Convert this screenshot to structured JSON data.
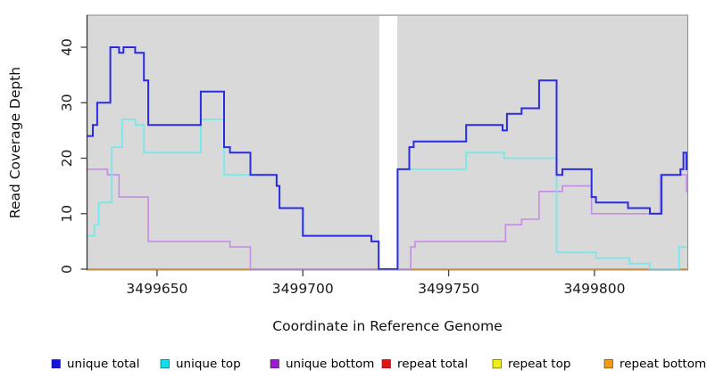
{
  "chart_data": {
    "type": "line",
    "subtype": "step",
    "title": "",
    "xlabel": "Coordinate in Reference Genome",
    "ylabel": "Read Coverage Depth",
    "xlim": [
      3499626,
      3499832
    ],
    "ylim": [
      0,
      44
    ],
    "x_ticks": [
      "3499650",
      "3499700",
      "3499750",
      "3499800"
    ],
    "x_tick_values": [
      3499650,
      3499700,
      3499750,
      3499800
    ],
    "y_ticks": [
      "0",
      "10",
      "20",
      "30",
      "40"
    ],
    "y_tick_values": [
      0,
      10,
      20,
      30,
      40
    ],
    "grid": false,
    "plot_bg": "#d9d9d9",
    "frame_color": "#8c8c8c",
    "axis_color": "#333333",
    "gap_region": {
      "x_start": 3499726.2,
      "x_end": 3499732.4,
      "color": "#ffffff"
    },
    "legend_position": "bottom",
    "series": [
      {
        "name": "unique total",
        "color": "#2b2be4",
        "legend_color": "#1414e0",
        "width": 2.0,
        "steps": [
          [
            3499626,
            24
          ],
          [
            3499628,
            26
          ],
          [
            3499629.5,
            30
          ],
          [
            3499634,
            40
          ],
          [
            3499637,
            39
          ],
          [
            3499638.5,
            40
          ],
          [
            3499642.5,
            39
          ],
          [
            3499645.5,
            34
          ],
          [
            3499647,
            26
          ],
          [
            3499665,
            32
          ],
          [
            3499673,
            22
          ],
          [
            3499675,
            21
          ],
          [
            3499682,
            17
          ],
          [
            3499691,
            15
          ],
          [
            3499692,
            11
          ],
          [
            3499700,
            6
          ],
          [
            3499723.5,
            5
          ],
          [
            3499726,
            0
          ],
          [
            3499732.5,
            18
          ],
          [
            3499736.5,
            22
          ],
          [
            3499738,
            23
          ],
          [
            3499756,
            26
          ],
          [
            3499768.5,
            25
          ],
          [
            3499770,
            28
          ],
          [
            3499775,
            29
          ],
          [
            3499781,
            34
          ],
          [
            3499787,
            17
          ],
          [
            3499789,
            18
          ],
          [
            3499799,
            13
          ],
          [
            3499800.5,
            12
          ],
          [
            3499811.5,
            11
          ],
          [
            3499819,
            10
          ],
          [
            3499823,
            17
          ],
          [
            3499829.5,
            18
          ],
          [
            3499830.5,
            21
          ],
          [
            3499831.5,
            18
          ]
        ]
      },
      {
        "name": "unique top",
        "color": "#74e9ed",
        "legend_color": "#12dde8",
        "width": 1.8,
        "steps": [
          [
            3499626,
            6
          ],
          [
            3499628.5,
            8
          ],
          [
            3499630,
            12
          ],
          [
            3499634.5,
            22
          ],
          [
            3499638,
            27
          ],
          [
            3499642.5,
            26
          ],
          [
            3499645.5,
            21
          ],
          [
            3499665,
            27
          ],
          [
            3499673,
            17
          ],
          [
            3499691,
            15
          ],
          [
            3499692,
            11
          ],
          [
            3499700,
            6
          ],
          [
            3499723.5,
            5
          ],
          [
            3499726,
            0
          ],
          [
            3499732.5,
            18
          ],
          [
            3499756,
            21
          ],
          [
            3499769,
            20
          ],
          [
            3499787,
            3
          ],
          [
            3499800.5,
            2
          ],
          [
            3499812,
            1
          ],
          [
            3499819,
            0
          ],
          [
            3499829,
            4
          ]
        ]
      },
      {
        "name": "unique bottom",
        "color": "#c48ee6",
        "legend_color": "#9d1bcf",
        "width": 1.6,
        "steps": [
          [
            3499626,
            18
          ],
          [
            3499633,
            17
          ],
          [
            3499637,
            13
          ],
          [
            3499647,
            5
          ],
          [
            3499675,
            4
          ],
          [
            3499682,
            0
          ],
          [
            3499737,
            4
          ],
          [
            3499738.5,
            5
          ],
          [
            3499769.5,
            8
          ],
          [
            3499775,
            9
          ],
          [
            3499781,
            14
          ],
          [
            3499789,
            15
          ],
          [
            3499799,
            10
          ],
          [
            3499822.5,
            17
          ],
          [
            3499831.5,
            14
          ]
        ]
      },
      {
        "name": "repeat total",
        "color": "#e01414",
        "legend_color": "#e01414",
        "width": 1.5,
        "steps": [
          [
            3499626,
            0
          ]
        ]
      },
      {
        "name": "repeat top",
        "color": "#f0f000",
        "legend_color": "#f0ef13",
        "width": 1.5,
        "steps": [
          [
            3499626,
            0
          ]
        ]
      },
      {
        "name": "repeat bottom",
        "color": "#ff9715",
        "legend_color": "#f59b0e",
        "width": 1.8,
        "steps": [
          [
            3499626,
            0
          ]
        ]
      }
    ]
  }
}
